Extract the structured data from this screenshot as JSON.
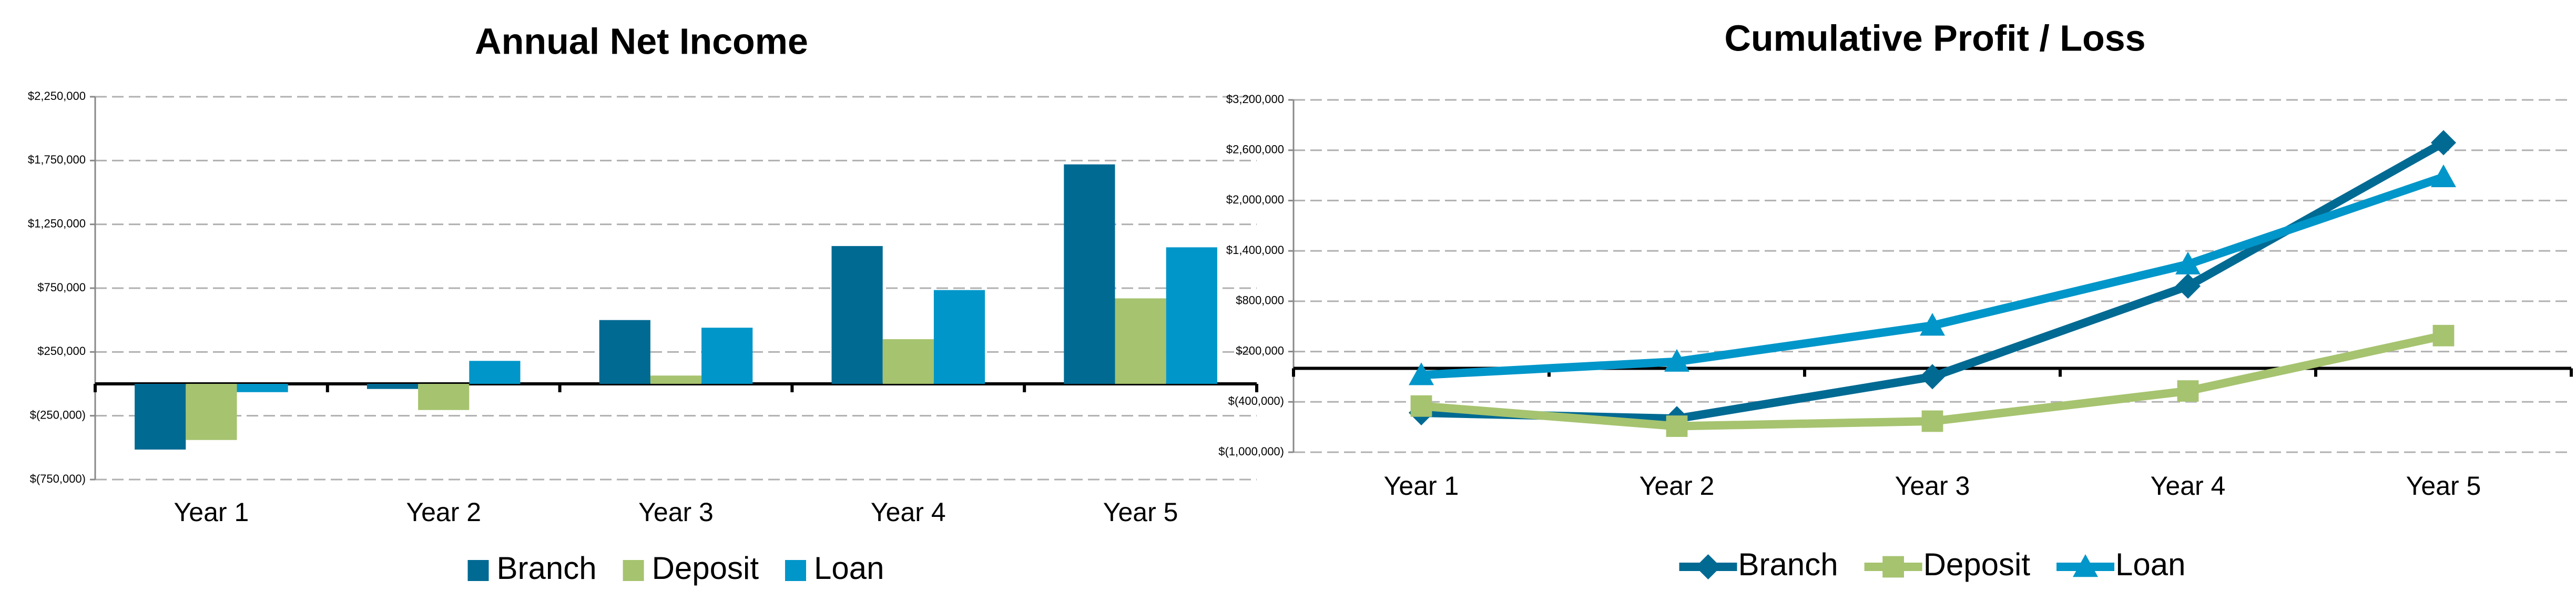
{
  "chart_data": [
    {
      "type": "bar",
      "title": "Annual Net Income",
      "categories": [
        "Year 1",
        "Year 2",
        "Year 3",
        "Year 4",
        "Year 5"
      ],
      "series": [
        {
          "name": "Branch",
          "color": "#006a93",
          "values": [
            -515000,
            -40000,
            500000,
            1080000,
            1720000
          ]
        },
        {
          "name": "Deposit",
          "color": "#a6c36f",
          "values": [
            -440000,
            -205000,
            65000,
            350000,
            670000
          ]
        },
        {
          "name": "Loan",
          "color": "#0096c9",
          "values": [
            -65000,
            180000,
            440000,
            735000,
            1070000
          ]
        }
      ],
      "ylim": [
        -750000,
        2250000
      ],
      "yticks": [
        {
          "value": -750000,
          "label": "$(750,000)"
        },
        {
          "value": -250000,
          "label": "$(250,000)"
        },
        {
          "value": 250000,
          "label": "$250,000"
        },
        {
          "value": 750000,
          "label": "$750,000"
        },
        {
          "value": 1250000,
          "label": "$1,250,000"
        },
        {
          "value": 1750000,
          "label": "$1,750,000"
        },
        {
          "value": 2250000,
          "label": "$2,250,000"
        }
      ],
      "grid": true,
      "legend": "bottom"
    },
    {
      "type": "line",
      "title": "Cumulative Profit / Loss",
      "categories": [
        "Year 1",
        "Year 2",
        "Year 3",
        "Year 4",
        "Year 5"
      ],
      "series": [
        {
          "name": "Branch",
          "color": "#006a93",
          "marker": "diamond",
          "values": [
            -530000,
            -600000,
            -100000,
            980000,
            2690000
          ]
        },
        {
          "name": "Deposit",
          "color": "#a6c36f",
          "marker": "square",
          "values": [
            -450000,
            -690000,
            -630000,
            -270000,
            390000
          ]
        },
        {
          "name": "Loan",
          "color": "#0096c9",
          "marker": "triangle",
          "values": [
            -80000,
            80000,
            510000,
            1240000,
            2280000
          ]
        }
      ],
      "ylim": [
        -1000000,
        3200000
      ],
      "yticks": [
        {
          "value": -1000000,
          "label": "$(1,000,000)"
        },
        {
          "value": -400000,
          "label": "$(400,000)"
        },
        {
          "value": 200000,
          "label": "$200,000"
        },
        {
          "value": 800000,
          "label": "$800,000"
        },
        {
          "value": 1400000,
          "label": "$1,400,000"
        },
        {
          "value": 2000000,
          "label": "$2,000,000"
        },
        {
          "value": 2600000,
          "label": "$2,600,000"
        },
        {
          "value": 3200000,
          "label": "$3,200,000"
        }
      ],
      "grid": true,
      "legend": "bottom"
    }
  ]
}
